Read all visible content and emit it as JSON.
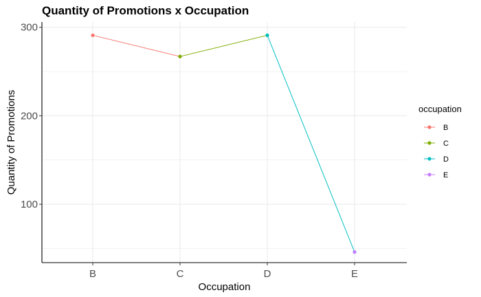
{
  "chart_data": {
    "type": "line",
    "title": "Quantity of Promotions x Occupation",
    "xlabel": "Occupation",
    "ylabel": "Quantity of Promotions",
    "categories": [
      "B",
      "C",
      "D",
      "E"
    ],
    "y_ticks": [
      100,
      200,
      300
    ],
    "y_tick_labels": [
      "100",
      "200",
      "300"
    ],
    "ylim": [
      34,
      306
    ],
    "grid": true,
    "legend_title": "occupation",
    "legend_position": "right",
    "series": [
      {
        "name": "B",
        "color": "#F8766D",
        "points": [
          {
            "x": "B",
            "y": 291
          },
          {
            "x": "C",
            "y": 267
          }
        ]
      },
      {
        "name": "C",
        "color": "#7CAE00",
        "points": [
          {
            "x": "C",
            "y": 267
          },
          {
            "x": "D",
            "y": 291
          }
        ]
      },
      {
        "name": "D",
        "color": "#00BFC4",
        "points": [
          {
            "x": "D",
            "y": 291
          },
          {
            "x": "E",
            "y": 46
          }
        ]
      },
      {
        "name": "E",
        "color": "#C77CFF",
        "points": [
          {
            "x": "E",
            "y": 46
          }
        ]
      }
    ],
    "colors": {
      "grid": "#ebebeb",
      "axis": "#000000",
      "tick_text": "#4d4d4d"
    }
  }
}
